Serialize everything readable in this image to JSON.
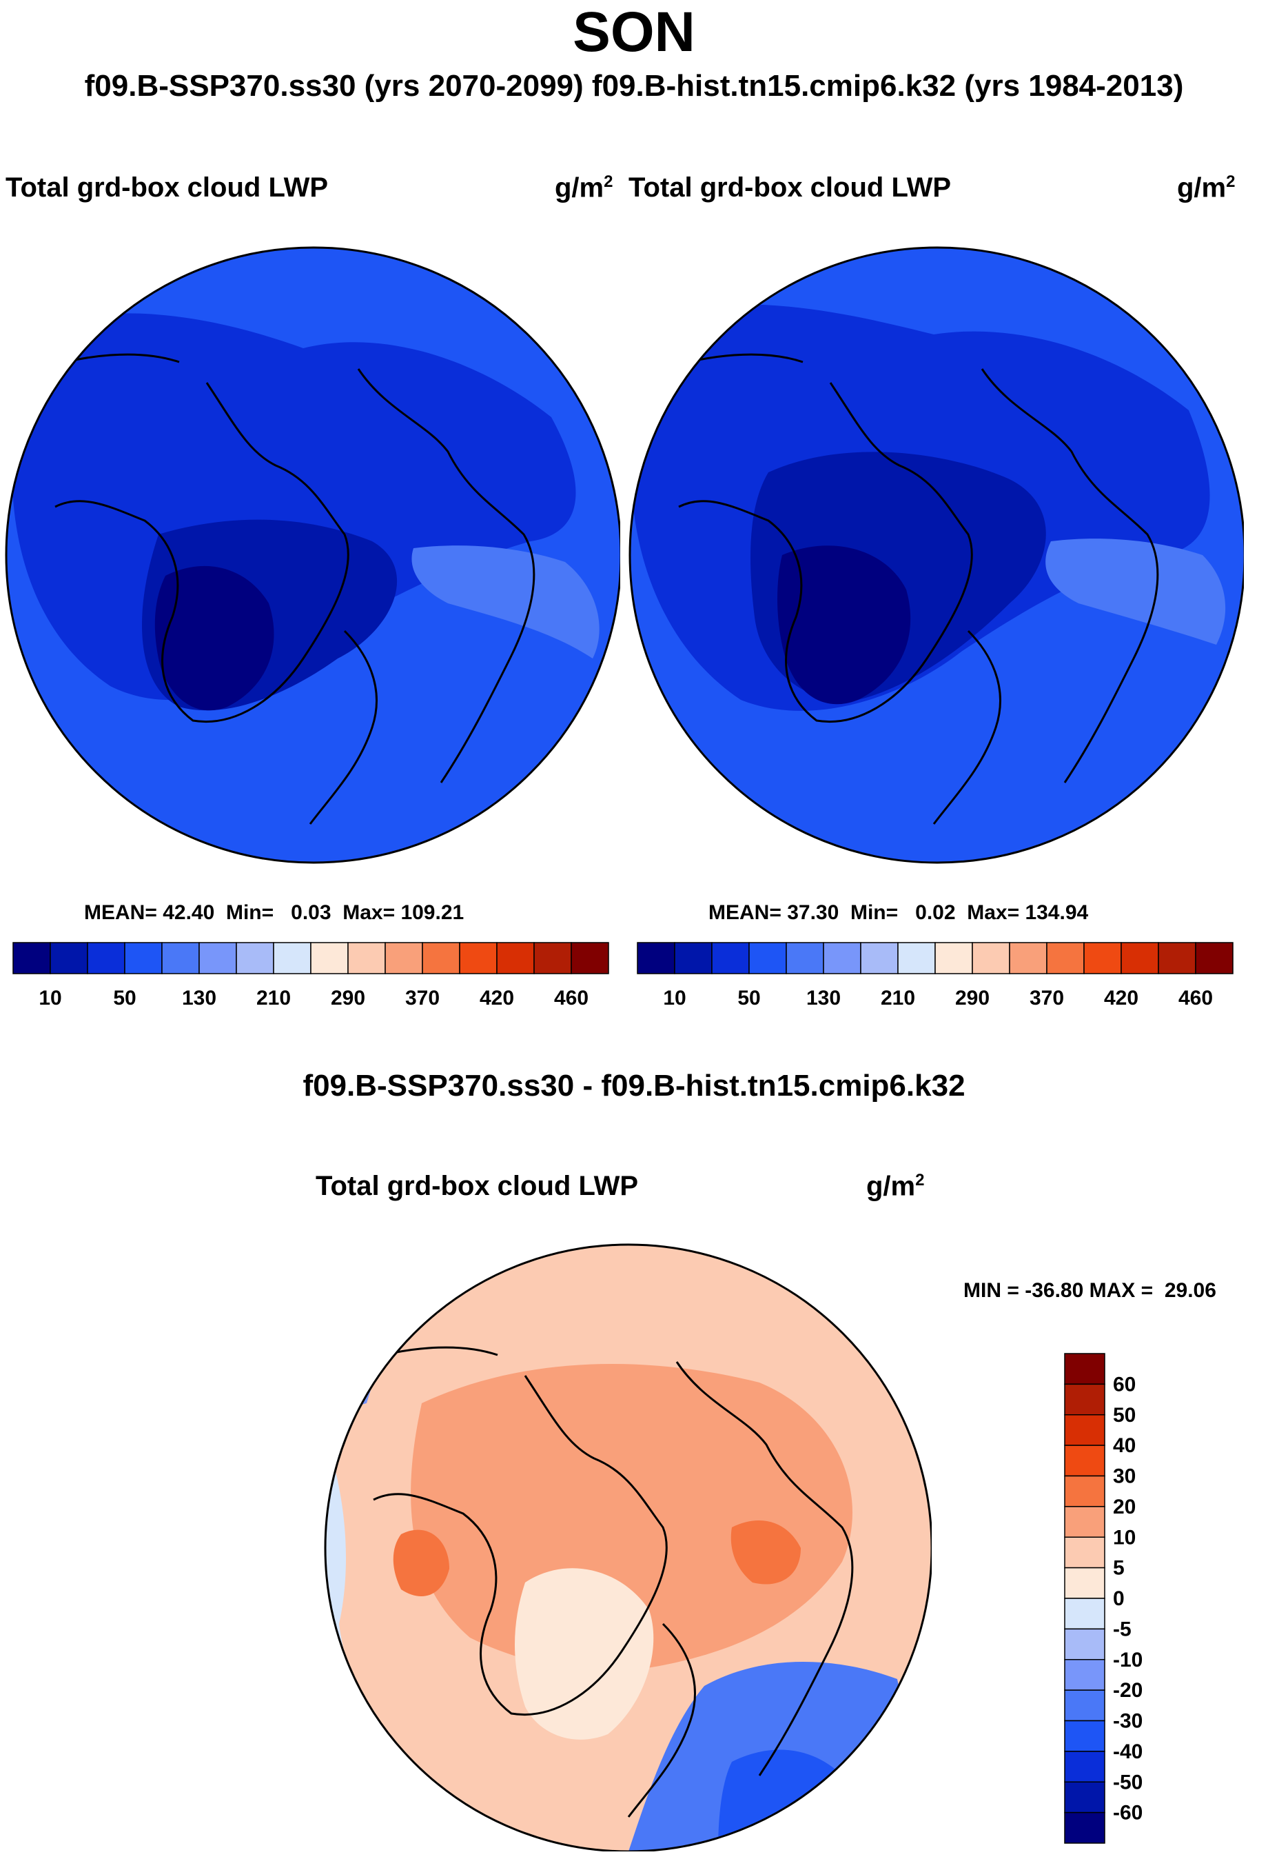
{
  "figure": {
    "title": "SON",
    "header_left": "f09.B-SSP370.ss30 (yrs 2070-2099)",
    "header_right": "f09.B-hist.tn15.cmip6.k32 (yrs 1984-2013)",
    "header_full": "f09.B-SSP370.ss30 (yrs 2070-2099)  f09.B-hist.tn15.cmip6.k32 (yrs 1984-2013)"
  },
  "colors": {
    "abs_scale": [
      "#00007f",
      "#0016aa",
      "#0a2ed9",
      "#1e55f5",
      "#4a78f7",
      "#7896fa",
      "#a8bbf8",
      "#d6e6fb",
      "#fde8d8",
      "#fccbb2",
      "#f9a07a",
      "#f5743f",
      "#ef4a12",
      "#d82f04",
      "#b01e05",
      "#800000"
    ],
    "diff_scale": [
      "#00007f",
      "#0016aa",
      "#0a2ed9",
      "#1e55f5",
      "#4a78f7",
      "#7896fa",
      "#a8bbf8",
      "#d6e6fb",
      "#fde8d8",
      "#fccbb2",
      "#f9a07a",
      "#f5743f",
      "#ef4a12",
      "#d82f04",
      "#b01e05",
      "#800000"
    ]
  },
  "chart_data": [
    {
      "type": "heatmap",
      "projection": "north polar stereographic",
      "title": "Total grd-box cloud LWP",
      "units": "g/m",
      "units_sup": "2",
      "case": "f09.B-SSP370.ss30 (yrs 2070-2099)",
      "stats": {
        "mean_label": "MEAN=",
        "mean": "42.40",
        "min_label": "Min=",
        "min": "0.03",
        "max_label": "Max=",
        "max": "109.21"
      },
      "colorbar": {
        "ticks": [
          "10",
          "50",
          "130",
          "210",
          "290",
          "370",
          "420",
          "460"
        ],
        "n_boxes": 16
      }
    },
    {
      "type": "heatmap",
      "projection": "north polar stereographic",
      "title": "Total grd-box cloud LWP",
      "units": "g/m",
      "units_sup": "2",
      "case": "f09.B-hist.tn15.cmip6.k32 (yrs 1984-2013)",
      "stats": {
        "mean_label": "MEAN=",
        "mean": "37.30",
        "min_label": "Min=",
        "min": "0.02",
        "max_label": "Max=",
        "max": "134.94"
      },
      "colorbar": {
        "ticks": [
          "10",
          "50",
          "130",
          "210",
          "290",
          "370",
          "420",
          "460"
        ],
        "n_boxes": 16
      }
    },
    {
      "type": "heatmap",
      "projection": "north polar stereographic",
      "subtitle": "f09.B-SSP370.ss30 - f09.B-hist.tn15.cmip6.k32",
      "title": "Total grd-box cloud LWP",
      "units": "g/m",
      "units_sup": "2",
      "stats": {
        "min_label": "MIN =",
        "min": "-36.80",
        "max_label": "MAX =",
        "max": "29.06"
      },
      "colorbar": {
        "ticks": [
          "60",
          "50",
          "40",
          "30",
          "20",
          "10",
          "5",
          "0",
          "-5",
          "-10",
          "-20",
          "-30",
          "-40",
          "-50",
          "-60"
        ],
        "n_boxes": 16
      }
    }
  ]
}
